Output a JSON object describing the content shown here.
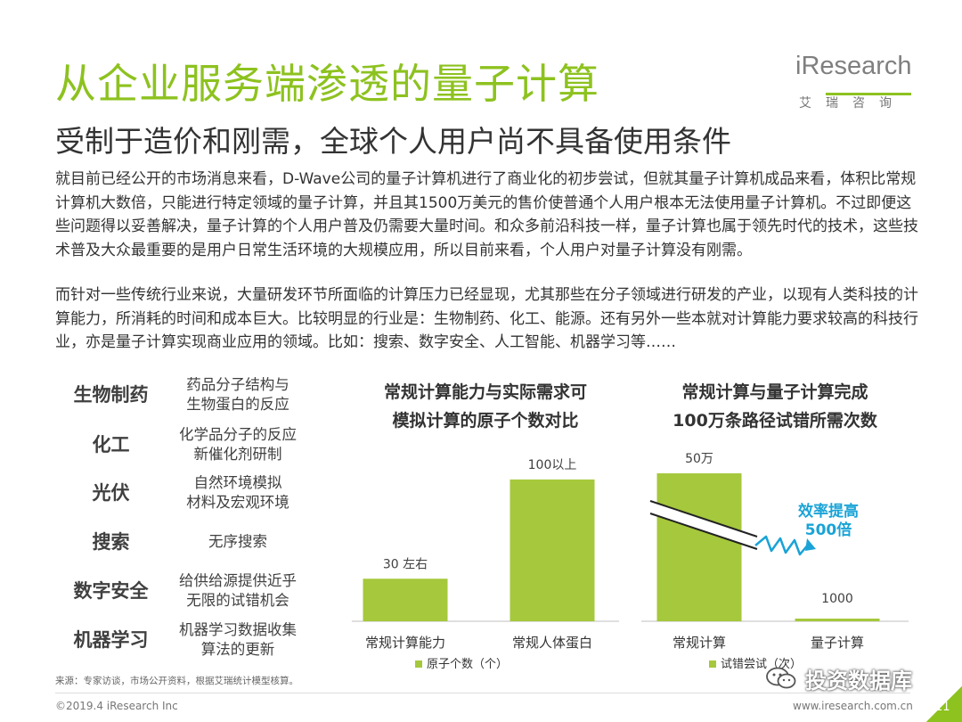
{
  "header": {
    "title": "从企业服务端渗透的量子计算",
    "subtitle": "受制于造价和刚需，全球个人用户尚不具备使用条件"
  },
  "logo": {
    "brand": "iResearch",
    "cn": "艾瑞咨询"
  },
  "paragraphs": [
    "就目前已经公开的市场消息来看，D-Wave公司的量子计算机进行了商业化的初步尝试，但就其量子计算机成品来看，体积比常规计算机大数倍，只能进行特定领域的量子计算，并且其1500万美元的售价使普通个人用户根本无法使用量子计算机。不过即便这些问题得以妥善解决，量子计算的个人用户普及仍需要大量时间。和众多前沿科技一样，量子计算也属于领先时代的技术，这些技术普及大众最重要的是用户日常生活环境的大规模应用，所以目前来看，个人用户对量子计算没有刚需。",
    "而针对一些传统行业来说，大量研发环节所面临的计算压力已经显现，尤其那些在分子领域进行研发的产业，以现有人类科技的计算能力，所消耗的时间和成本巨大。比较明显的行业是：生物制药、化工、能源。还有另外一些本就对计算能力要求较高的科技行业，亦是量子计算实现商业应用的领域。比如：搜索、数字安全、人工智能、机器学习等……"
  ],
  "industries": [
    {
      "name": "生物制药",
      "desc": [
        "药品分子结构与",
        "生物蛋白的反应"
      ]
    },
    {
      "name": "化工",
      "desc": [
        "化学品分子的反应",
        "新催化剂研制"
      ]
    },
    {
      "name": "光伏",
      "desc": [
        "自然环境模拟",
        "材料及宏观环境"
      ]
    },
    {
      "name": "搜索",
      "desc": [
        "无序搜索"
      ]
    },
    {
      "name": "数字安全",
      "desc": [
        "给供给源提供近乎",
        "无限的试错机会"
      ]
    },
    {
      "name": "机器学习",
      "desc": [
        "机器学习数据收集",
        "算法的更新"
      ]
    }
  ],
  "chart_data": [
    {
      "type": "bar",
      "title": [
        "常规计算能力与实际需求可",
        "模拟计算的原子个数对比"
      ],
      "categories": [
        "常规计算能力",
        "常规人体蛋白"
      ],
      "series": [
        {
          "name": "原子个数（个）",
          "values": [
            30,
            100
          ]
        }
      ],
      "data_labels": [
        "30 左右",
        "100以上"
      ],
      "ylim": [
        0,
        110
      ],
      "legend": "bottom",
      "color": "#a5c83c"
    },
    {
      "type": "bar",
      "title": [
        "常规计算与量子计算完成",
        "100万条路径试错所需次数"
      ],
      "categories": [
        "常规计算",
        "量子计算"
      ],
      "series": [
        {
          "name": "试错尝试（次）",
          "values": [
            500000,
            1000
          ]
        }
      ],
      "data_labels": [
        "50万",
        "1000"
      ],
      "axis_break": true,
      "annotation": [
        "效率提高",
        "500倍"
      ],
      "legend": "bottom",
      "color": "#a5c83c"
    }
  ],
  "footer": {
    "source": "来源：专家访谈，市场公开资料，根据艾瑞统计模型核算。",
    "copyright": "©2019.4 iResearch Inc",
    "website": "www.iresearch.com.cn",
    "page": "11",
    "watermark": "投资数据库"
  },
  "colors": {
    "accent": "#8dc21f",
    "bar": "#a5c83c",
    "annotation": "#1aa3d6"
  }
}
